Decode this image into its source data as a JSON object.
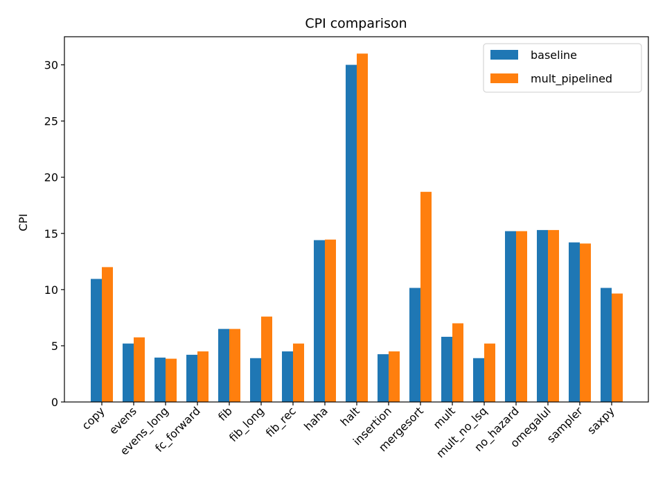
{
  "chart_data": {
    "type": "bar",
    "title": "CPI comparison",
    "xlabel": "",
    "ylabel": "CPI",
    "ylim": [
      0,
      32.5
    ],
    "yticks": [
      0,
      5,
      10,
      15,
      20,
      25,
      30
    ],
    "grid": false,
    "legend_position": "top-right",
    "categories": [
      "copy",
      "evens",
      "evens_long",
      "fc_forward",
      "fib",
      "fib_long",
      "fib_rec",
      "haha",
      "halt",
      "insertion",
      "mergesort",
      "mult",
      "mult_no_lsq",
      "no_hazard",
      "omegalul",
      "sampler",
      "saxpy"
    ],
    "series": [
      {
        "name": "baseline",
        "color": "#1f77b4",
        "values": [
          10.95,
          5.2,
          3.95,
          4.2,
          6.5,
          3.9,
          4.5,
          14.4,
          30.0,
          4.25,
          10.15,
          5.8,
          3.9,
          15.2,
          15.3,
          14.2,
          10.15
        ]
      },
      {
        "name": "mult_pipelined",
        "color": "#ff7f0e",
        "values": [
          12.0,
          5.75,
          3.85,
          4.5,
          6.5,
          7.6,
          5.2,
          14.45,
          31.0,
          4.5,
          18.7,
          7.0,
          5.2,
          15.2,
          15.3,
          14.1,
          9.65
        ]
      }
    ]
  }
}
